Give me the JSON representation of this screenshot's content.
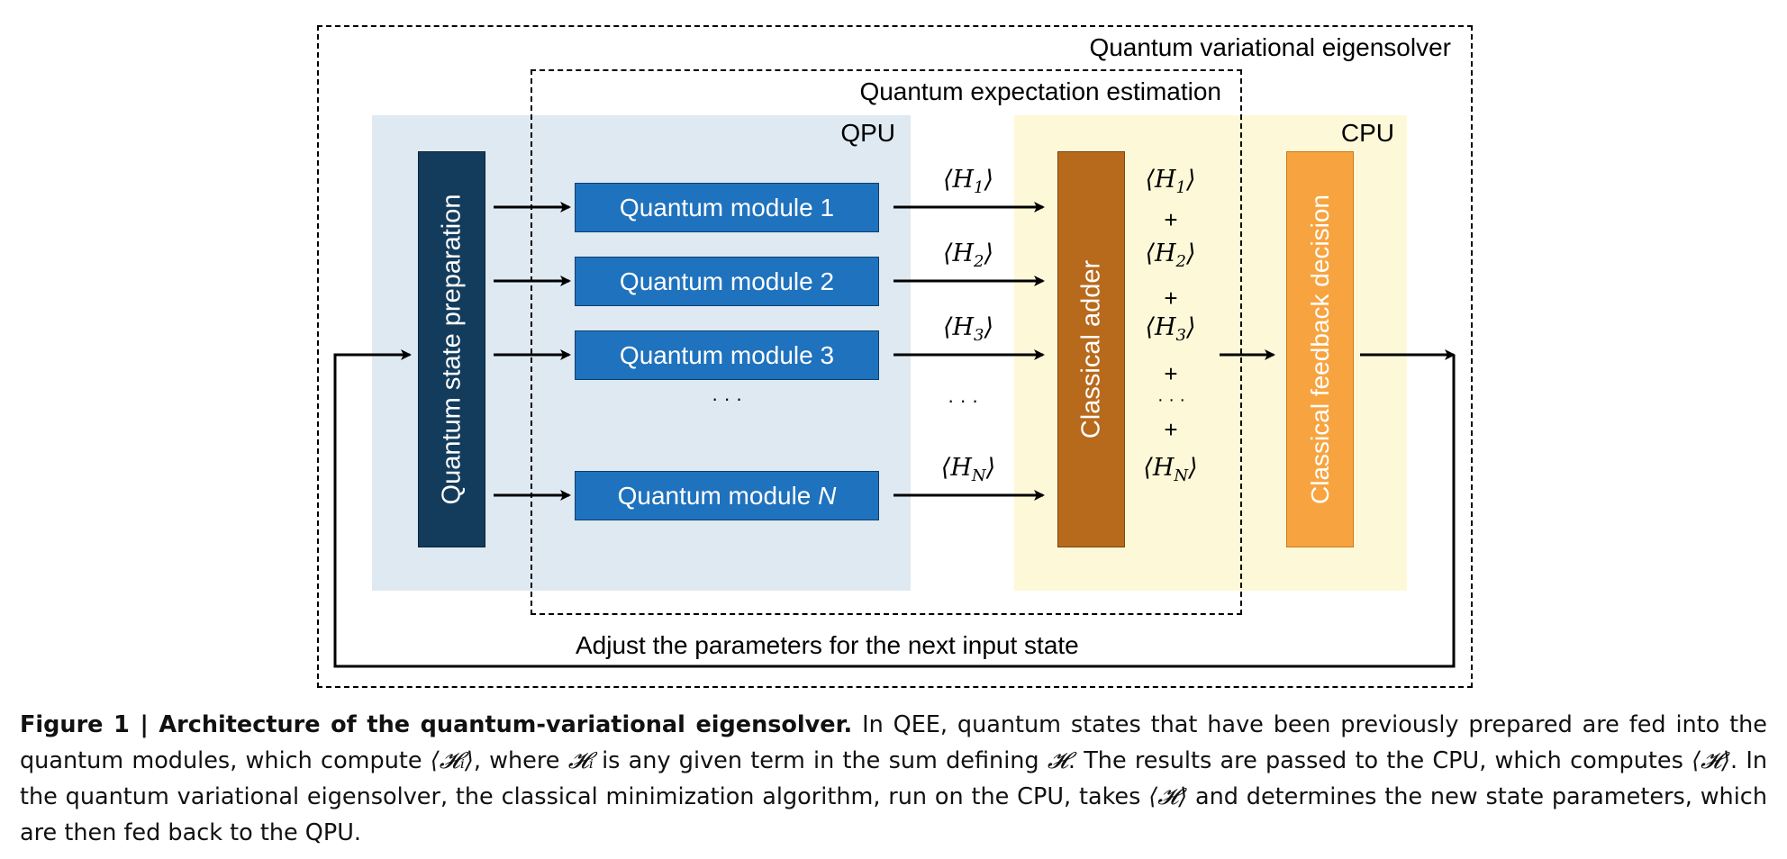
{
  "diagram": {
    "outer_label": "Quantum variational eigensolver",
    "qee_label": "Quantum expectation estimation",
    "qpu_label": "QPU",
    "cpu_label": "CPU",
    "state_prep_label": "Quantum state preparation",
    "modules": [
      {
        "prefix": "Quantum module ",
        "index": "1"
      },
      {
        "prefix": "Quantum module ",
        "index": "2"
      },
      {
        "prefix": "Quantum module ",
        "index": "3"
      },
      {
        "prefix": "Quantum module ",
        "index": "N"
      }
    ],
    "module_ellipsis": "· · ·",
    "h_labels": [
      {
        "open": "⟨H",
        "sub": "1",
        "close": "⟩"
      },
      {
        "open": "⟨H",
        "sub": "2",
        "close": "⟩"
      },
      {
        "open": "⟨H",
        "sub": "3",
        "close": "⟩"
      },
      {
        "open": "⟨H",
        "sub": "N",
        "close": "⟩"
      }
    ],
    "h_ellipsis": "· · ·",
    "adder_label": "Classical adder",
    "plus": "+",
    "sum_ellipsis": "· · ·",
    "feedback_label": "Classical feedback decision",
    "loop_label": "Adjust the parameters for the next input state",
    "colors": {
      "qpu_bg": "#dfe9f2",
      "cpu_bg": "#fdf9d8",
      "state_prep": "#133c5c",
      "module": "#1f72bd",
      "adder": "#b86a1c",
      "feedback": "#f7a440"
    }
  },
  "caption": {
    "bold": "Figure 1 | Architecture of the quantum-variational eigensolver.",
    "s1": " In QEE, quantum states that have been previously prepared are fed into the quantum modules, which compute ",
    "expect_Hi": "⟨𝓗ᵢ⟩",
    "s2": ", where ",
    "Hi": "𝓗ᵢ",
    "s3": " is any given term in the sum defining ",
    "H": "𝓗",
    "s4": ". The results are passed to the CPU, which computes ",
    "expect_H": "⟨𝓗⟩",
    "s5": ". In the quantum variational eigensolver, the classical minimization algorithm, run on the CPU, takes ",
    "expect_H2": "⟨𝓗⟩",
    "s6": " and determines the new state parameters, which are then fed back to the QPU."
  }
}
